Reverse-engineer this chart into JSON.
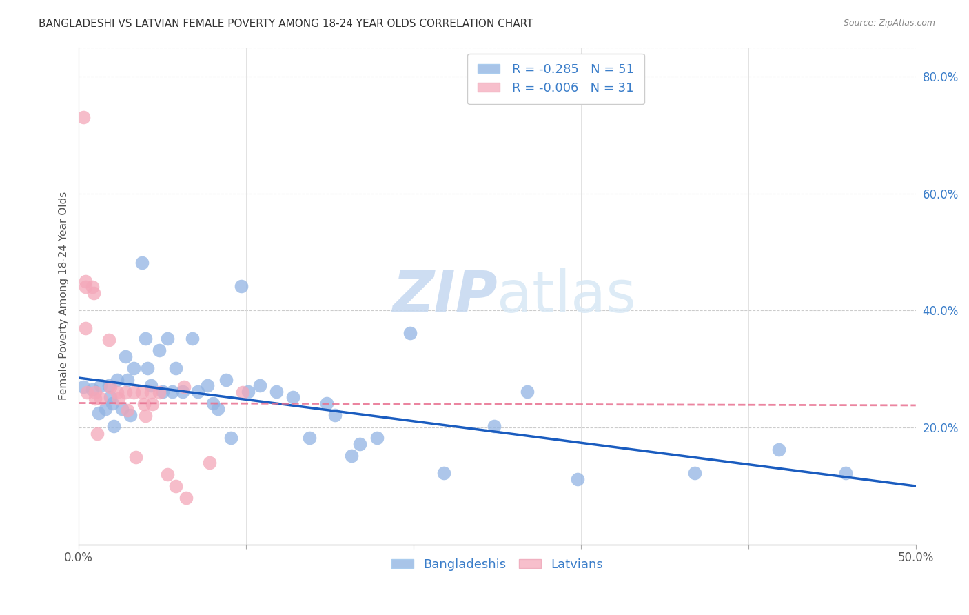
{
  "title": "BANGLADESHI VS LATVIAN FEMALE POVERTY AMONG 18-24 YEAR OLDS CORRELATION CHART",
  "source": "Source: ZipAtlas.com",
  "ylabel": "Female Poverty Among 18-24 Year Olds",
  "xlim": [
    0.0,
    0.5
  ],
  "ylim": [
    0.0,
    0.85
  ],
  "ytick_labels": [
    "20.0%",
    "40.0%",
    "60.0%",
    "80.0%"
  ],
  "ytick_values": [
    0.2,
    0.4,
    0.6,
    0.8
  ],
  "bangladeshi_color": "#92b4e3",
  "latvian_color": "#f4a7b9",
  "trend_bangladeshi_color": "#1a5cbf",
  "trend_latvian_color": "#e87090",
  "legend_bangladeshi_color": "#a8c4e8",
  "legend_latvian_color": "#f7bfcc",
  "R_bangladeshi": -0.285,
  "N_bangladeshi": 51,
  "R_latvian": -0.006,
  "N_latvian": 31,
  "watermark_zip": "ZIP",
  "watermark_atlas": "atlas",
  "bangladeshi_x": [
    0.003,
    0.008,
    0.012,
    0.013,
    0.016,
    0.018,
    0.019,
    0.02,
    0.021,
    0.023,
    0.026,
    0.028,
    0.029,
    0.031,
    0.033,
    0.038,
    0.04,
    0.041,
    0.043,
    0.048,
    0.05,
    0.053,
    0.056,
    0.058,
    0.062,
    0.068,
    0.071,
    0.077,
    0.08,
    0.083,
    0.088,
    0.091,
    0.097,
    0.101,
    0.108,
    0.118,
    0.128,
    0.138,
    0.148,
    0.153,
    0.163,
    0.168,
    0.178,
    0.198,
    0.218,
    0.248,
    0.268,
    0.298,
    0.368,
    0.418,
    0.458
  ],
  "bangladeshi_y": [
    0.27,
    0.265,
    0.225,
    0.272,
    0.232,
    0.272,
    0.252,
    0.242,
    0.202,
    0.282,
    0.232,
    0.322,
    0.282,
    0.222,
    0.302,
    0.482,
    0.352,
    0.302,
    0.272,
    0.332,
    0.262,
    0.352,
    0.262,
    0.302,
    0.262,
    0.352,
    0.262,
    0.272,
    0.242,
    0.232,
    0.282,
    0.182,
    0.442,
    0.262,
    0.272,
    0.262,
    0.252,
    0.182,
    0.242,
    0.222,
    0.152,
    0.172,
    0.182,
    0.362,
    0.122,
    0.202,
    0.262,
    0.112,
    0.122,
    0.162,
    0.122
  ],
  "latvian_x": [
    0.003,
    0.004,
    0.004,
    0.004,
    0.005,
    0.008,
    0.009,
    0.01,
    0.01,
    0.011,
    0.013,
    0.018,
    0.019,
    0.023,
    0.024,
    0.028,
    0.029,
    0.033,
    0.034,
    0.038,
    0.039,
    0.04,
    0.043,
    0.044,
    0.048,
    0.053,
    0.058,
    0.063,
    0.064,
    0.078,
    0.098
  ],
  "latvian_y": [
    0.73,
    0.45,
    0.44,
    0.37,
    0.26,
    0.44,
    0.43,
    0.26,
    0.25,
    0.19,
    0.25,
    0.35,
    0.27,
    0.26,
    0.25,
    0.26,
    0.23,
    0.26,
    0.15,
    0.26,
    0.24,
    0.22,
    0.26,
    0.24,
    0.26,
    0.12,
    0.1,
    0.27,
    0.08,
    0.14,
    0.26
  ],
  "bang_trend_x0": 0.0,
  "bang_trend_y0": 0.285,
  "bang_trend_x1": 0.5,
  "bang_trend_y1": 0.1,
  "lat_trend_x0": 0.0,
  "lat_trend_y0": 0.242,
  "lat_trend_x1": 0.5,
  "lat_trend_y1": 0.238
}
